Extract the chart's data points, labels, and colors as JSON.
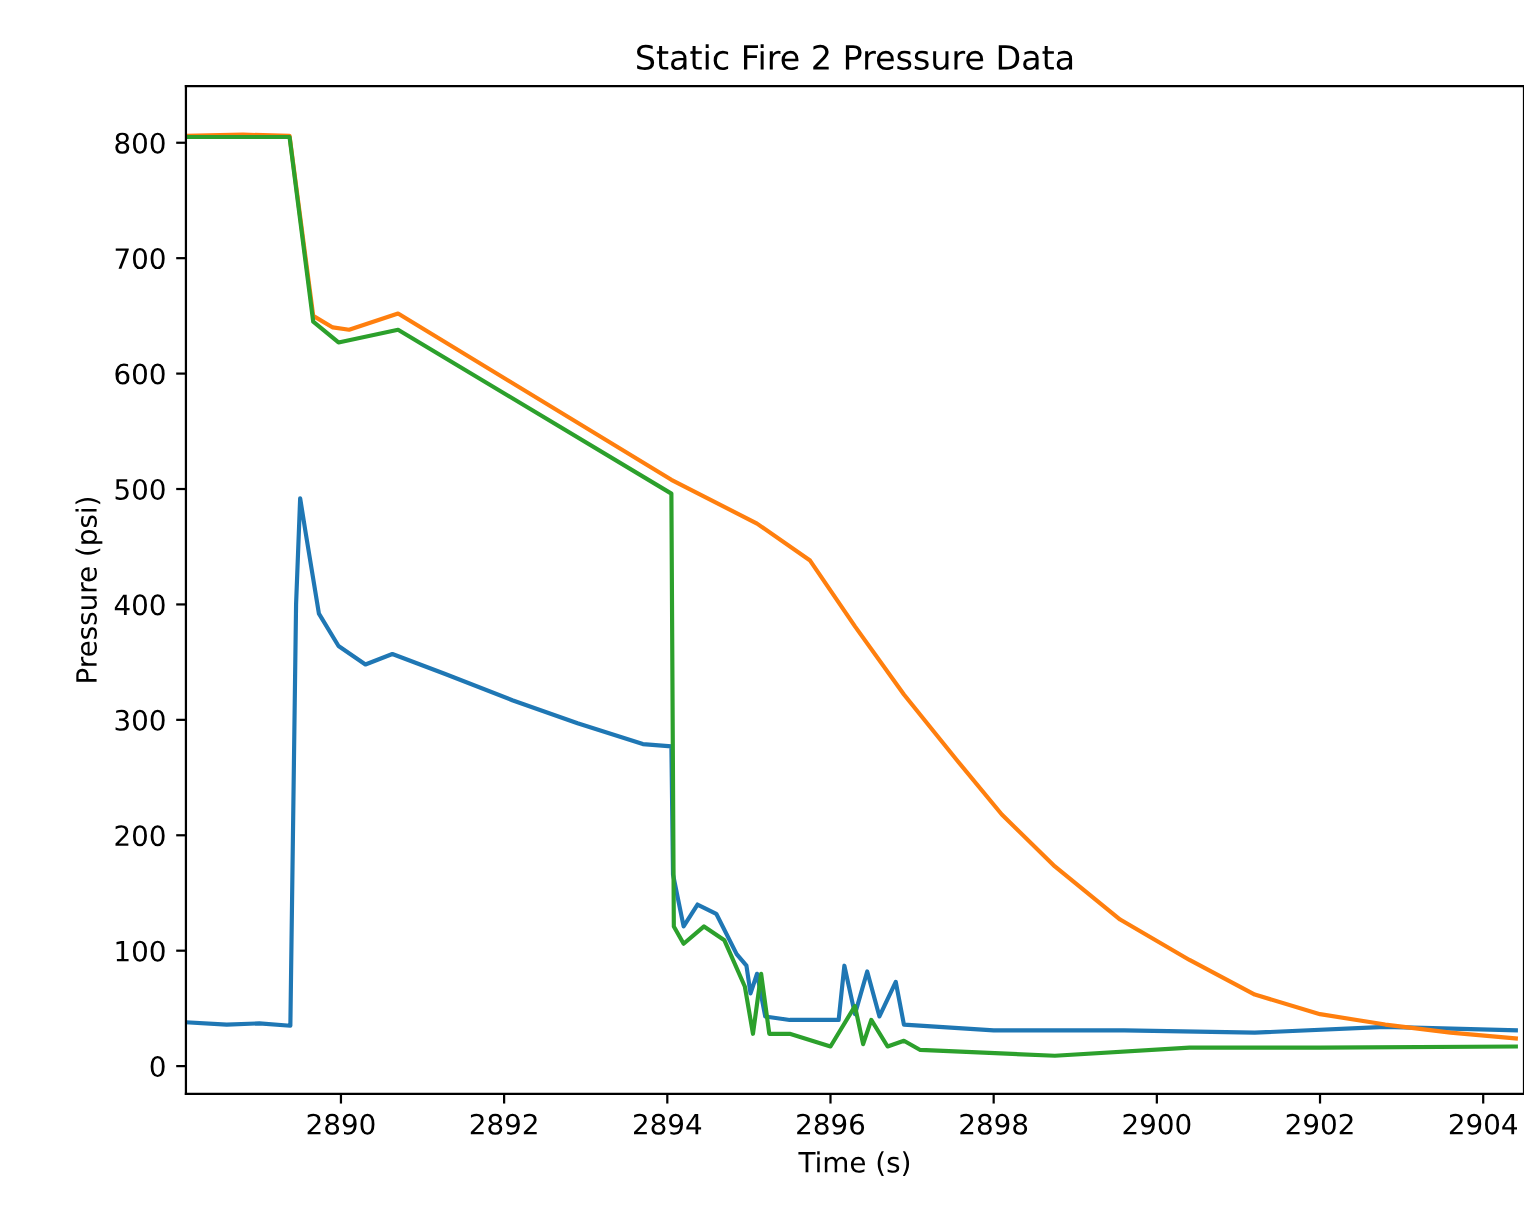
{
  "chart_data": {
    "type": "line",
    "title": "Static Fire 2 Pressure Data",
    "xlabel": "Time (s)",
    "ylabel": "Pressure (psi)",
    "xlim": [
      2888.1,
      2904.5
    ],
    "xticks": [
      2890,
      2892,
      2894,
      2896,
      2898,
      2900,
      2902,
      2904
    ],
    "ylim": [
      -24,
      849
    ],
    "yticks": [
      0,
      100,
      200,
      300,
      400,
      500,
      600,
      700,
      800
    ],
    "grid": false,
    "legend": false,
    "series": [
      {
        "color": "#1f77b4",
        "x": [
          2888.1,
          2888.6,
          2889.0,
          2889.38,
          2889.45,
          2889.5,
          2889.57,
          2889.73,
          2889.97,
          2890.3,
          2890.63,
          2891.27,
          2892.1,
          2892.9,
          2893.7,
          2894.05,
          2894.07,
          2894.2,
          2894.37,
          2894.6,
          2894.85,
          2894.97,
          2895.02,
          2895.1,
          2895.2,
          2895.5,
          2896.1,
          2896.17,
          2896.3,
          2896.45,
          2896.6,
          2896.8,
          2896.9,
          2898.0,
          2899.6,
          2901.2,
          2902.8,
          2904.4
        ],
        "values": [
          38,
          36,
          37,
          35,
          400,
          492,
          461,
          392,
          364,
          348,
          357,
          340,
          317,
          297,
          279,
          277,
          166,
          121,
          140,
          132,
          97,
          87,
          63,
          80,
          43,
          40,
          40,
          87,
          45,
          82,
          43,
          73,
          36,
          31,
          31,
          29,
          34,
          31
        ]
      },
      {
        "color": "#ff7f0e",
        "x": [
          2888.1,
          2888.8,
          2889.37,
          2889.66,
          2889.9,
          2890.1,
          2890.7,
          2894.05,
          2895.1,
          2895.75,
          2896.3,
          2896.9,
          2897.55,
          2898.1,
          2898.75,
          2899.55,
          2900.4,
          2901.2,
          2902.0,
          2902.8,
          2903.6,
          2904.4
        ],
        "values": [
          806,
          807,
          806,
          650,
          640,
          638,
          652,
          508,
          470,
          438,
          381,
          322,
          265,
          218,
          173,
          127,
          92,
          62,
          45,
          36,
          29,
          24
        ]
      },
      {
        "color": "#2ca02c",
        "x": [
          2888.1,
          2888.8,
          2889.37,
          2889.66,
          2889.97,
          2890.7,
          2894.05,
          2894.08,
          2894.2,
          2894.45,
          2894.7,
          2894.95,
          2895.05,
          2895.15,
          2895.25,
          2895.5,
          2896.0,
          2896.3,
          2896.4,
          2896.5,
          2896.7,
          2896.9,
          2897.1,
          2898.75,
          2900.4,
          2902.0,
          2904.4
        ],
        "values": [
          805,
          805,
          805,
          645,
          627,
          638,
          496,
          121,
          106,
          121,
          109,
          69,
          28,
          80,
          28,
          28,
          17,
          52,
          19,
          40,
          17,
          22,
          14,
          9,
          16,
          16,
          17
        ]
      }
    ]
  }
}
